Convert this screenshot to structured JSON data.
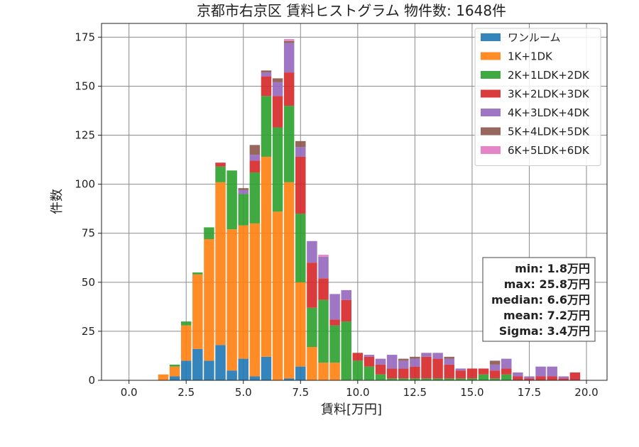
{
  "chart_data": {
    "type": "bar",
    "stacked": true,
    "title": "京都市右京区 賃料ヒストグラム  物件数: 1648件",
    "xlabel": "賃料[万円]",
    "ylabel": "件数",
    "xlim": [
      -1.2,
      20.9
    ],
    "ylim": [
      0,
      182
    ],
    "xticks": [
      0.0,
      2.5,
      5.0,
      7.5,
      10.0,
      12.5,
      15.0,
      17.5,
      20.0
    ],
    "xtick_labels": [
      "0.0",
      "2.5",
      "5.0",
      "7.5",
      "10.0",
      "12.5",
      "15.0",
      "17.5",
      "20.0"
    ],
    "yticks": [
      0,
      25,
      50,
      75,
      100,
      125,
      150,
      175
    ],
    "ytick_labels": [
      "0",
      "25",
      "50",
      "75",
      "100",
      "125",
      "150",
      "175"
    ],
    "grid": true,
    "legend_position": "top-right",
    "bin_width": 0.5,
    "x": [
      1.5,
      2.0,
      2.5,
      3.0,
      3.5,
      4.0,
      4.5,
      5.0,
      5.5,
      6.0,
      6.5,
      7.0,
      7.5,
      8.0,
      8.5,
      9.0,
      9.5,
      10.0,
      10.5,
      11.0,
      11.5,
      12.0,
      12.5,
      13.0,
      13.5,
      14.0,
      14.5,
      15.0,
      15.5,
      16.0,
      16.5,
      17.0,
      17.5,
      18.0,
      18.5,
      19.0,
      19.5
    ],
    "series": [
      {
        "name": "ワンルーム",
        "color": "#1f77b4",
        "values": [
          0,
          2,
          10,
          16,
          10,
          18,
          5,
          11,
          2,
          12,
          0,
          1,
          7,
          0,
          0,
          0,
          0,
          0,
          0,
          0,
          0,
          0,
          0,
          0,
          0,
          0,
          0,
          0,
          0,
          0,
          0,
          0,
          0,
          0,
          0,
          0,
          0
        ]
      },
      {
        "name": "1K+1DK",
        "color": "#ff7f0e",
        "values": [
          3,
          5,
          18,
          38,
          62,
          83,
          72,
          68,
          78,
          102,
          86,
          100,
          43,
          17,
          9,
          9,
          0,
          0,
          0,
          0,
          0,
          0,
          0,
          0,
          0,
          0,
          0,
          0,
          0,
          0,
          0,
          0,
          0,
          0,
          0,
          0,
          0
        ]
      },
      {
        "name": "2K+1LDK+2DK",
        "color": "#2ca02c",
        "values": [
          0,
          1,
          2,
          1,
          6,
          8,
          30,
          16,
          26,
          31,
          43,
          39,
          35,
          20,
          32,
          19,
          30,
          10,
          7,
          3,
          1,
          1,
          1,
          1,
          1,
          1,
          1,
          1,
          3,
          1,
          3,
          0,
          0,
          0,
          0,
          0,
          0
        ]
      },
      {
        "name": "3K+2LDK+3DK",
        "color": "#d62728",
        "values": [
          0,
          0,
          0,
          0,
          0,
          2,
          0,
          0,
          6,
          10,
          16,
          17,
          29,
          23,
          11,
          3,
          11,
          4,
          5,
          5,
          5,
          5,
          6,
          11,
          10,
          7,
          4,
          5,
          3,
          4,
          3,
          2,
          1,
          2,
          2,
          1,
          4
        ]
      },
      {
        "name": "4K+3LDK+4DK",
        "color": "#9467bd",
        "values": [
          0,
          0,
          0,
          0,
          0,
          0,
          0,
          2,
          3,
          2,
          7,
          15,
          5,
          11,
          11,
          13,
          5,
          0,
          1,
          3,
          7,
          4,
          4,
          2,
          3,
          3,
          1,
          0,
          0,
          3,
          5,
          2,
          1,
          5,
          5,
          1,
          0
        ]
      },
      {
        "name": "5K+4LDK+5DK",
        "color": "#8c564b",
        "values": [
          0,
          0,
          0,
          0,
          0,
          0,
          0,
          1,
          5,
          1,
          2,
          1,
          3,
          0,
          0,
          0,
          0,
          0,
          0,
          0,
          0,
          1,
          1,
          0,
          0,
          1,
          0,
          0,
          0,
          2,
          0,
          0,
          0,
          0,
          0,
          0,
          0
        ]
      },
      {
        "name": "6K+5LDK+6DK",
        "color": "#e377c2",
        "values": [
          0,
          0,
          0,
          0,
          0,
          0,
          0,
          0,
          0,
          0,
          0,
          1,
          0,
          0,
          1,
          0,
          0,
          0,
          0,
          0,
          0,
          0,
          0,
          0,
          0,
          0,
          0,
          0,
          0,
          0,
          0,
          0,
          0,
          0,
          0,
          0,
          0
        ]
      }
    ],
    "stats_box": [
      "min: 1.8万円",
      "max: 25.8万円",
      "median: 6.6万円",
      "mean: 7.2万円",
      "Sigma: 3.4万円"
    ]
  }
}
